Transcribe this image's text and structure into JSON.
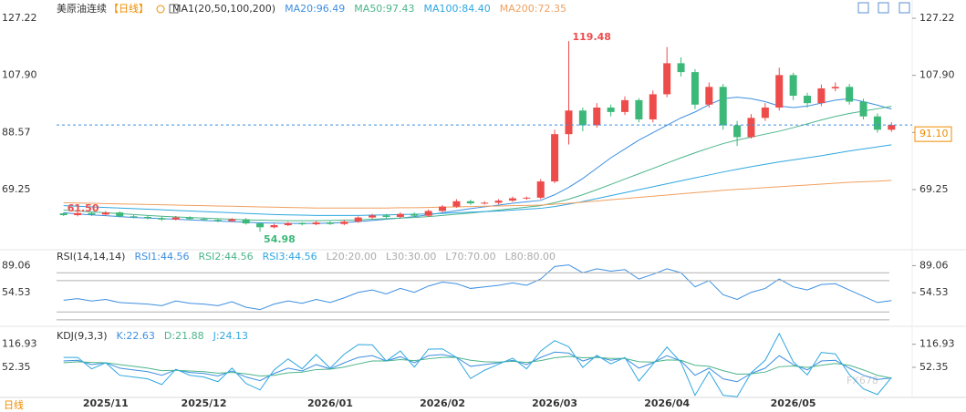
{
  "chart_data": [
    {
      "type": "candlestick",
      "title": "美原油连续",
      "period": "【日线】",
      "indicator": "MA1(20,50,100,200)",
      "categories": [
        null,
        null,
        null,
        "2025/11",
        null,
        null,
        null,
        null,
        null,
        null,
        "2025/12",
        null,
        null,
        null,
        null,
        null,
        null,
        null,
        null,
        "2026/01",
        null,
        null,
        null,
        null,
        null,
        null,
        null,
        "2026/02",
        null,
        null,
        null,
        null,
        null,
        null,
        null,
        "2026/03",
        null,
        null,
        null,
        null,
        null,
        null,
        null,
        "2026/04",
        null,
        null,
        null,
        null,
        null,
        null,
        null,
        null,
        "2026/05",
        null,
        null,
        null,
        null,
        null,
        null,
        null
      ],
      "open": [
        61.2,
        60.6,
        61.3,
        60.8,
        61.5,
        60.2,
        60.0,
        59.6,
        59.1,
        59.8,
        59.3,
        59.0,
        58.6,
        59.2,
        57.8,
        56.5,
        57.2,
        57.9,
        57.5,
        58.1,
        57.6,
        58.4,
        59.8,
        60.5,
        60.0,
        61.0,
        60.4,
        62.0,
        63.5,
        65.3,
        64.6,
        64.8,
        65.5,
        66.3,
        66.5,
        72.0,
        88.0,
        96.0,
        91.0,
        97.0,
        95.5,
        99.5,
        93.0,
        101.5,
        112.0,
        109.0,
        98.0,
        104.0,
        91.0,
        87.0,
        93.5,
        97.0,
        108.0,
        101.0,
        98.5,
        103.5,
        104.0,
        99.0,
        94.0,
        89.5
      ],
      "high": [
        61.5,
        61.8,
        61.8,
        62.0,
        61.9,
        60.7,
        60.4,
        60.1,
        60.3,
        60.2,
        59.8,
        59.4,
        59.6,
        59.6,
        58.2,
        57.7,
        58.3,
        58.2,
        58.6,
        58.5,
        58.9,
        60.2,
        61.0,
        61.0,
        61.5,
        61.5,
        62.5,
        64.0,
        66.0,
        65.8,
        65.3,
        66.0,
        66.9,
        66.9,
        72.8,
        89.5,
        119.48,
        97.0,
        98.5,
        98.0,
        100.8,
        100.2,
        102.8,
        117.5,
        114.0,
        110.0,
        105.5,
        105.0,
        92.5,
        94.8,
        98.5,
        110.5,
        108.8,
        102.0,
        104.8,
        105.5,
        105.0,
        100.0,
        95.0,
        92.0
      ],
      "low": [
        60.3,
        60.2,
        60.3,
        60.4,
        59.8,
        59.5,
        59.2,
        58.7,
        58.8,
        58.9,
        58.6,
        58.2,
        58.3,
        57.4,
        54.98,
        56.1,
        56.9,
        57.1,
        57.2,
        57.3,
        57.2,
        58.0,
        59.4,
        59.6,
        59.6,
        60.0,
        60.0,
        61.6,
        63.1,
        64.1,
        64.2,
        64.3,
        65.1,
        65.8,
        66.0,
        71.4,
        84.5,
        89.0,
        90.2,
        94.0,
        94.5,
        92.0,
        92.0,
        100.5,
        107.5,
        96.5,
        97.0,
        89.5,
        84.0,
        86.5,
        92.5,
        96.0,
        99.5,
        97.0,
        97.5,
        102.5,
        98.0,
        93.0,
        88.5,
        88.8
      ],
      "close": [
        60.6,
        61.3,
        60.8,
        61.5,
        60.2,
        60.0,
        59.6,
        59.1,
        59.8,
        59.3,
        59.0,
        58.6,
        59.2,
        57.8,
        56.5,
        57.2,
        57.9,
        57.5,
        58.1,
        57.6,
        58.4,
        59.8,
        60.5,
        60.0,
        61.0,
        60.4,
        62.0,
        63.5,
        65.3,
        64.6,
        64.8,
        65.5,
        66.3,
        66.5,
        72.0,
        88.0,
        96.0,
        91.0,
        97.0,
        95.5,
        99.5,
        93.0,
        101.5,
        112.0,
        109.0,
        98.0,
        104.0,
        91.0,
        87.0,
        93.5,
        97.0,
        108.0,
        101.0,
        98.5,
        103.5,
        104.0,
        99.0,
        94.0,
        89.5,
        91.1
      ],
      "up_color": "#ee4b4b",
      "down_color": "#3cb878",
      "ylim": [
        49.5,
        129.7
      ],
      "yticks": [
        127.22,
        {
          "value": 107.9,
          "label": "107.90"
        },
        88.57,
        69.25
      ],
      "series": [
        {
          "name": "MA20:96.49",
          "color": "#3d8fe0",
          "values": [
            61.4,
            61.0,
            60.7,
            60.4,
            60.1,
            59.8,
            59.6,
            59.4,
            59.2,
            59.0,
            58.8,
            58.6,
            58.4,
            58.2,
            58.0,
            57.9,
            57.8,
            57.8,
            57.8,
            57.9,
            58.1,
            58.4,
            58.8,
            59.2,
            59.6,
            60.1,
            60.7,
            61.4,
            62.1,
            62.8,
            63.4,
            64.0,
            64.6,
            65.1,
            65.6,
            67.5,
            70.0,
            73.0,
            76.5,
            80.0,
            83.0,
            86.0,
            88.5,
            91.0,
            93.5,
            95.5,
            98.0,
            100.0,
            100.5,
            100.0,
            99.0,
            97.5,
            97.0,
            97.5,
            98.5,
            99.5,
            100.0,
            99.0,
            97.8,
            96.49
          ]
        },
        {
          "name": "MA50:97.43",
          "color": "#4bb58a",
          "values": [
            62.3,
            62.0,
            61.7,
            61.4,
            61.1,
            60.8,
            60.5,
            60.2,
            60.0,
            59.8,
            59.6,
            59.4,
            59.2,
            59.0,
            58.9,
            58.8,
            58.7,
            58.7,
            58.7,
            58.8,
            58.9,
            59.0,
            59.2,
            59.4,
            59.6,
            59.8,
            60.1,
            60.5,
            60.9,
            61.3,
            61.8,
            62.3,
            62.8,
            63.3,
            63.8,
            64.8,
            66.0,
            67.5,
            69.2,
            71.0,
            72.8,
            74.6,
            76.4,
            78.2,
            80.0,
            81.7,
            83.3,
            84.8,
            86.0,
            87.0,
            88.0,
            89.0,
            90.2,
            91.5,
            92.8,
            94.0,
            95.0,
            95.8,
            96.6,
            97.43
          ]
        },
        {
          "name": "MA100:84.40",
          "color": "#2fa7e0",
          "values": [
            63.8,
            63.6,
            63.4,
            63.2,
            63.0,
            62.8,
            62.6,
            62.4,
            62.2,
            62.0,
            61.8,
            61.6,
            61.4,
            61.2,
            61.0,
            60.8,
            60.7,
            60.6,
            60.5,
            60.5,
            60.5,
            60.5,
            60.6,
            60.7,
            60.8,
            60.9,
            61.0,
            61.2,
            61.4,
            61.6,
            61.8,
            62.0,
            62.3,
            62.6,
            62.9,
            63.5,
            64.3,
            65.2,
            66.2,
            67.2,
            68.2,
            69.2,
            70.2,
            71.2,
            72.2,
            73.2,
            74.2,
            75.2,
            76.1,
            77.0,
            77.8,
            78.6,
            79.3,
            80.0,
            80.7,
            81.5,
            82.3,
            83.0,
            83.7,
            84.4
          ]
        },
        {
          "name": "MA200:72.35",
          "color": "#f0a060",
          "values": [
            64.8,
            64.7,
            64.6,
            64.5,
            64.4,
            64.3,
            64.2,
            64.1,
            64.0,
            63.9,
            63.8,
            63.7,
            63.6,
            63.5,
            63.4,
            63.3,
            63.2,
            63.1,
            63.0,
            63.0,
            63.0,
            63.0,
            63.0,
            63.0,
            63.1,
            63.1,
            63.2,
            63.3,
            63.4,
            63.5,
            63.6,
            63.7,
            63.8,
            63.9,
            64.0,
            64.3,
            64.6,
            65.0,
            65.4,
            65.8,
            66.2,
            66.6,
            67.0,
            67.4,
            67.8,
            68.2,
            68.6,
            69.0,
            69.3,
            69.6,
            69.9,
            70.2,
            70.5,
            70.8,
            71.1,
            71.4,
            71.7,
            71.9,
            72.1,
            72.35
          ]
        }
      ],
      "last_price": {
        "value": 91.1,
        "label": "91.10"
      },
      "annotations": [
        {
          "value": 61.5,
          "label": "61.50"
        },
        {
          "value": 119.48,
          "label": "119.48"
        },
        {
          "value": 54.98,
          "label": "54.98"
        }
      ]
    },
    {
      "type": "line",
      "title": "RSI(14,14,14)",
      "series": [
        {
          "name": "RSI1:44.56",
          "color": "#3d8fe0",
          "values": [
            45,
            47,
            44,
            46,
            42,
            41,
            40,
            38,
            44,
            41,
            40,
            38,
            43,
            36,
            33,
            40,
            44,
            41,
            46,
            42,
            48,
            55,
            58,
            53,
            60,
            55,
            63,
            68,
            66,
            60,
            62,
            64,
            67,
            64,
            72,
            88,
            90,
            80,
            85,
            82,
            84,
            72,
            78,
            85,
            80,
            62,
            70,
            52,
            46,
            55,
            60,
            72,
            62,
            58,
            65,
            66,
            58,
            50,
            42,
            44.56
          ]
        }
      ],
      "legend": [
        {
          "name": "RSI2:44.56",
          "color": "#4bb58a"
        },
        {
          "name": "RSI3:44.56",
          "color": "#2fa7e0"
        }
      ],
      "levels": [
        {
          "value": 20,
          "label": "L20:20.00"
        },
        {
          "value": 30,
          "label": "L30:30.00"
        },
        {
          "value": 70,
          "label": "L70:70.00"
        },
        {
          "value": 80,
          "label": "L80:80.00"
        }
      ],
      "ylim": [
        14,
        107
      ],
      "yticks": [
        89.06,
        54.53
      ]
    },
    {
      "type": "line",
      "title": "KDJ(9,3,3)",
      "series": [
        {
          "name": "K:22.63",
          "color": "#3d8fe0",
          "values": [
            70,
            72,
            60,
            65,
            50,
            45,
            40,
            30,
            45,
            38,
            35,
            28,
            42,
            25,
            15,
            35,
            50,
            42,
            60,
            48,
            65,
            80,
            85,
            70,
            82,
            65,
            85,
            88,
            80,
            55,
            60,
            65,
            72,
            60,
            80,
            95,
            92,
            70,
            82,
            72,
            78,
            50,
            65,
            85,
            70,
            30,
            50,
            20,
            12,
            35,
            50,
            85,
            60,
            45,
            70,
            72,
            50,
            30,
            18,
            22.63
          ]
        },
        {
          "name": "D:21.88",
          "color": "#4bb58a",
          "values": [
            65,
            68,
            66,
            65,
            60,
            55,
            50,
            43,
            44,
            42,
            40,
            36,
            38,
            34,
            28,
            30,
            37,
            39,
            46,
            47,
            53,
            62,
            70,
            70,
            74,
            71,
            76,
            80,
            80,
            72,
            68,
            67,
            69,
            66,
            71,
            79,
            83,
            79,
            80,
            77,
            77,
            68,
            67,
            73,
            72,
            58,
            55,
            43,
            33,
            34,
            39,
            54,
            56,
            52,
            58,
            63,
            58,
            45,
            30,
            21.88
          ]
        },
        {
          "name": "J:24.13",
          "color": "#2fa7e0",
          "values": [
            80,
            80,
            48,
            65,
            30,
            25,
            20,
            4,
            47,
            30,
            25,
            12,
            50,
            7,
            -11,
            45,
            76,
            48,
            88,
            50,
            89,
            116,
            115,
            70,
            98,
            53,
            103,
            104,
            80,
            21,
            44,
            61,
            78,
            48,
            98,
            127,
            110,
            52,
            86,
            62,
            80,
            14,
            61,
            109,
            66,
            -26,
            40,
            -26,
            -30,
            37,
            72,
            147,
            68,
            31,
            94,
            90,
            32,
            -8,
            -24,
            24.13
          ]
        }
      ],
      "ylim": [
        -32,
        162
      ],
      "yticks": [
        116.93,
        52.35
      ]
    }
  ],
  "footer_label": "日线",
  "watermark": "FX678"
}
